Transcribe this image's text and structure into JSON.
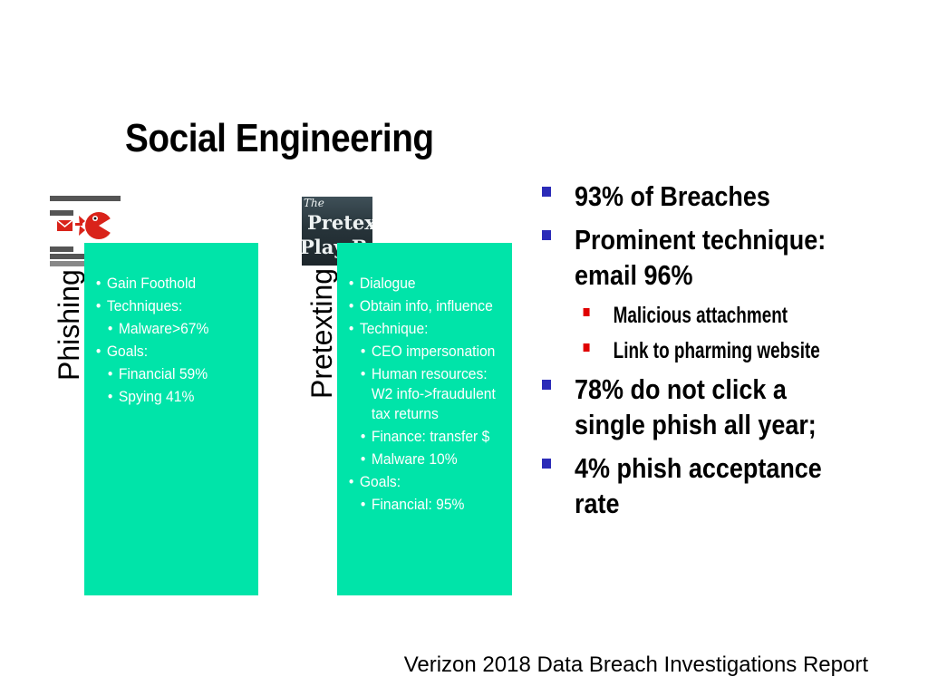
{
  "slide": {
    "title": "Social Engineering",
    "footer": "Verizon 2018 Data Breach Investigations Report"
  },
  "phishing": {
    "label": "Phishing",
    "items": [
      {
        "text": "Gain Foothold",
        "level": 1
      },
      {
        "text": "Techniques:",
        "level": 1
      },
      {
        "text": "Malware>67%",
        "level": 2
      },
      {
        "text": "Goals:",
        "level": 1
      },
      {
        "text": "Financial 59%",
        "level": 2
      },
      {
        "text": "Spying 41%",
        "level": 2
      }
    ]
  },
  "pretexting": {
    "label": "Pretexting",
    "image_text": {
      "line1": "The",
      "line2": "Pretext",
      "line3": "Play Book"
    },
    "items": [
      {
        "text": "Dialogue",
        "level": 1
      },
      {
        "text": "Obtain info, influence",
        "level": 1
      },
      {
        "text": "Technique:",
        "level": 1
      },
      {
        "text": "CEO impersonation",
        "level": 2
      },
      {
        "text": "Human resources: W2 info->fraudulent tax returns",
        "level": 2
      },
      {
        "text": "Finance: transfer $",
        "level": 2
      },
      {
        "text": "Malware 10%",
        "level": 2
      },
      {
        "text": "Goals:",
        "level": 1
      },
      {
        "text": "Financial: 95%",
        "level": 2
      }
    ]
  },
  "key_points": [
    {
      "text": "93% of Breaches",
      "level": 1
    },
    {
      "text": "Prominent technique:",
      "level": 1
    },
    {
      "text": "email 96%",
      "level": 1,
      "continuation": true
    },
    {
      "text": "Malicious attachment",
      "level": 2
    },
    {
      "text": "Link to pharming website",
      "level": 2
    },
    {
      "text": "78% do not click a",
      "level": 1
    },
    {
      "text": "single phish all year;",
      "level": 1,
      "continuation": true
    },
    {
      "text": "4% phish acceptance",
      "level": 1
    },
    {
      "text": "rate",
      "level": 1,
      "continuation": true
    }
  ],
  "colors": {
    "panel": "#00e4a9",
    "panel_text": "#ffffff",
    "bullet_primary": "#2b2bb8",
    "bullet_secondary": "#e00000"
  },
  "icons": {
    "phishing_icon": "phishing-email-fish-icon",
    "pretext_image": "pretext-playbook-cover"
  }
}
